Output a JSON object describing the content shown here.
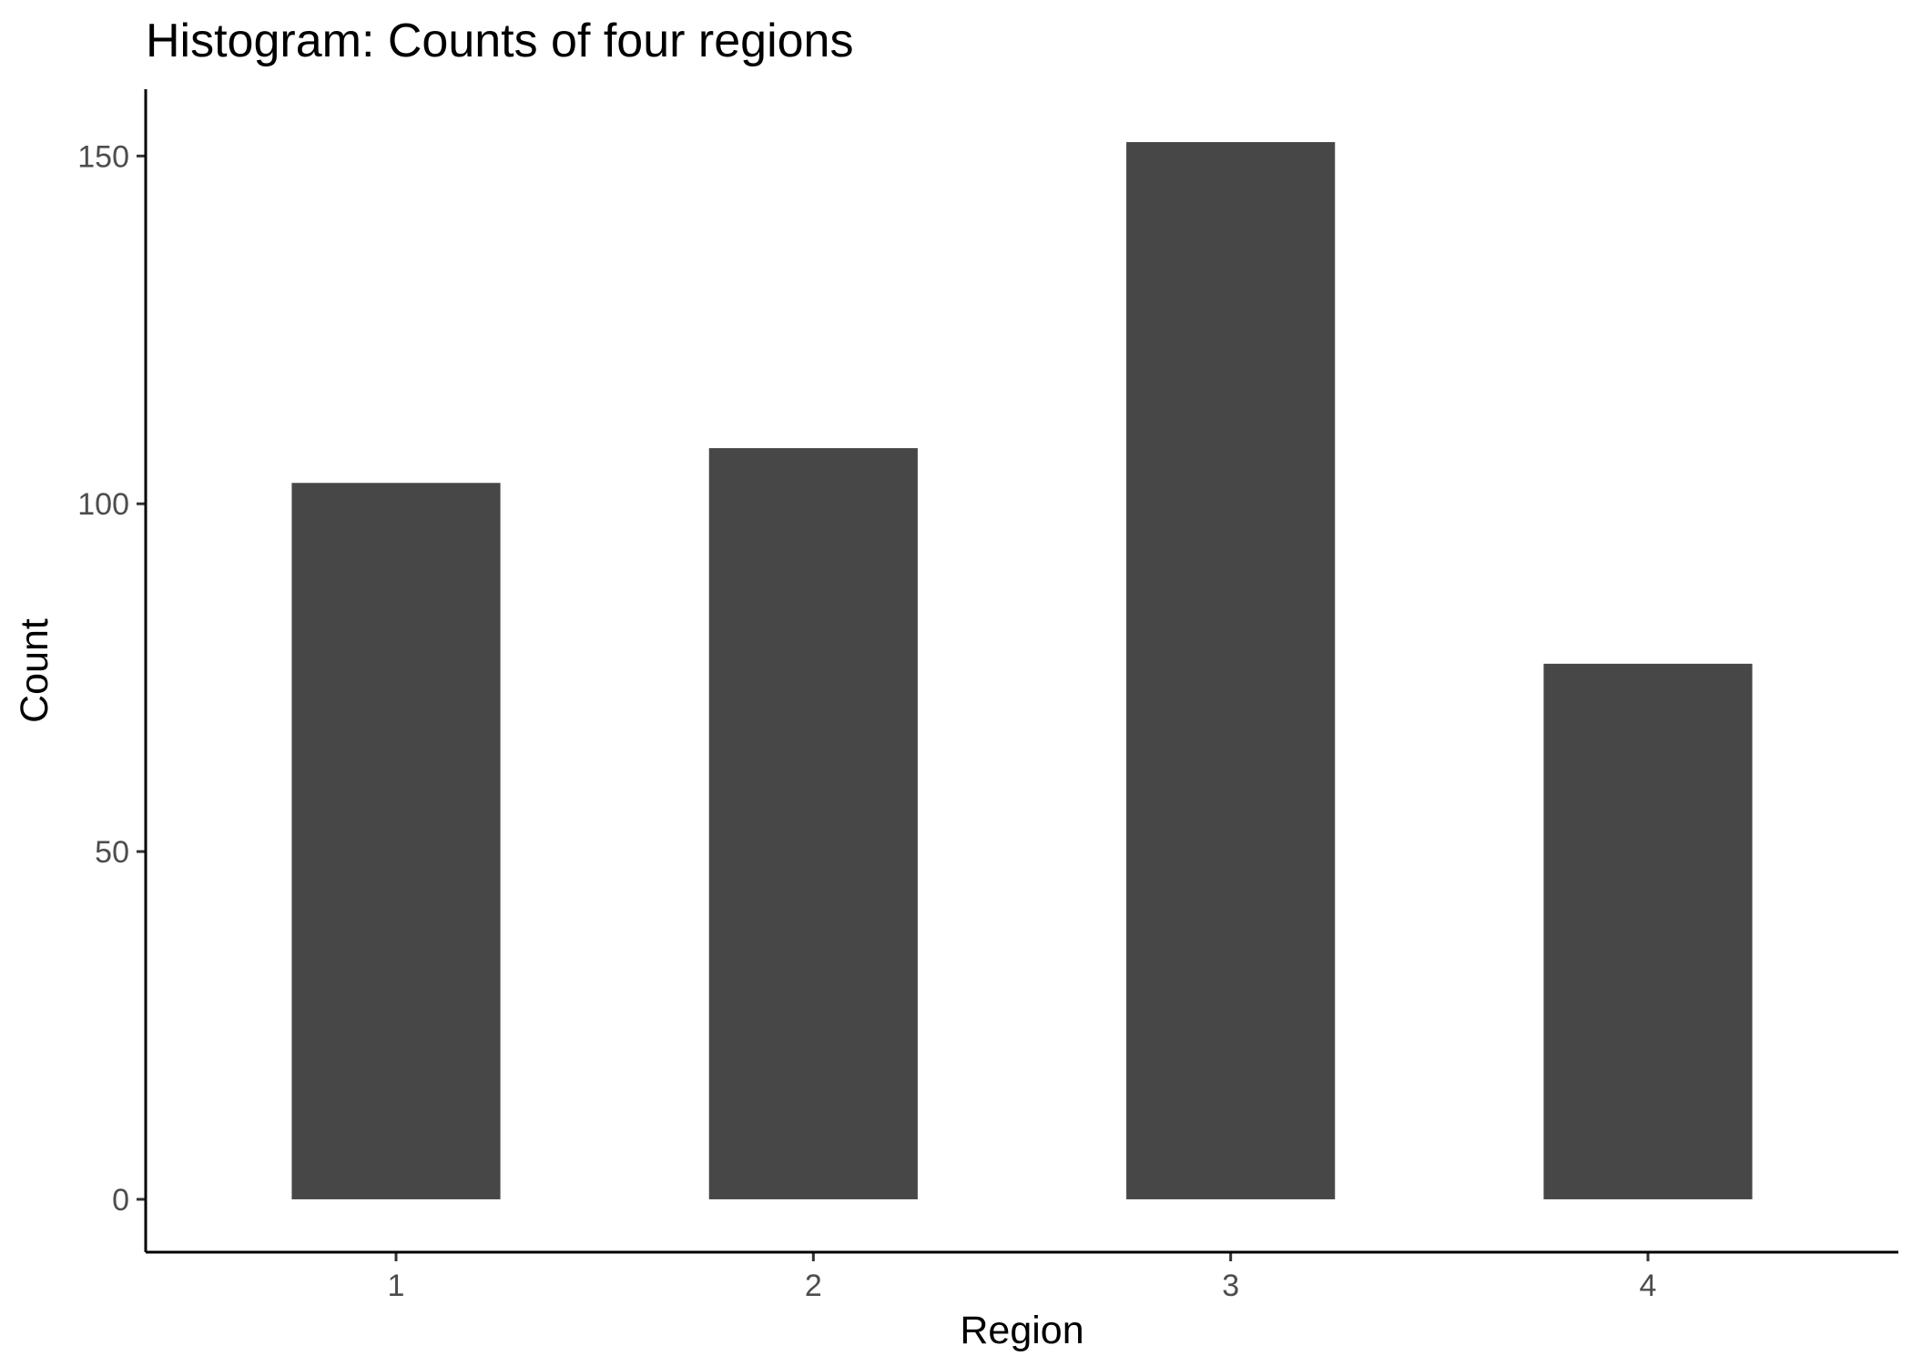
{
  "chart_data": {
    "type": "bar",
    "title": "Histogram: Counts of four regions",
    "xlabel": "Region",
    "ylabel": "Count",
    "categories": [
      "1",
      "2",
      "3",
      "4"
    ],
    "values": [
      103,
      108,
      152,
      77
    ],
    "yticks": [
      0,
      50,
      100,
      150
    ],
    "ylim": [
      -7.6,
      159.6
    ],
    "grid": false,
    "legend": "none",
    "colors": {
      "bar": "#474747",
      "axis": "#000000",
      "tick_label": "#4d4d4d",
      "background": "#ffffff"
    }
  }
}
